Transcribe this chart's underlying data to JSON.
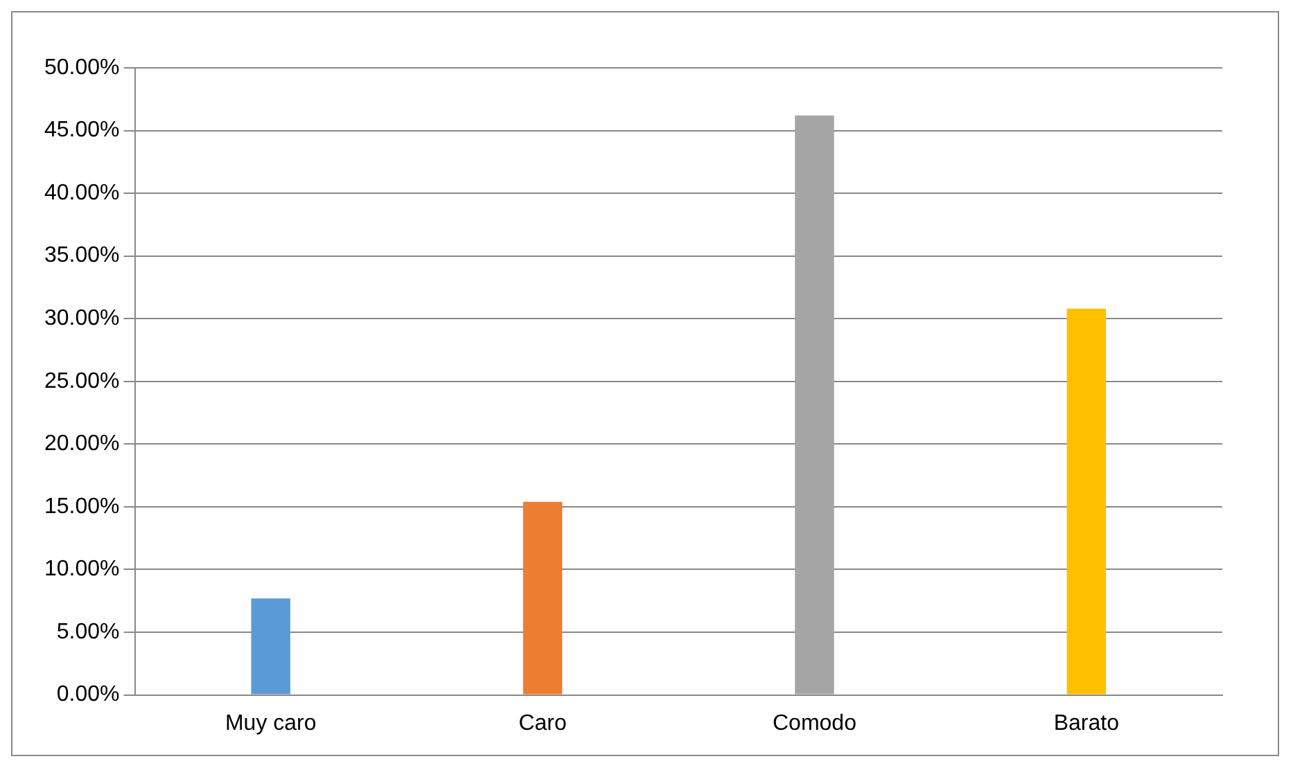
{
  "chart_data": {
    "type": "bar",
    "categories": [
      "Muy caro",
      "Caro",
      "Comodo",
      "Barato"
    ],
    "values": [
      7.7,
      15.4,
      46.2,
      30.8
    ],
    "colors": [
      "#5b9bd5",
      "#ed7d31",
      "#a5a5a5",
      "#ffc000"
    ],
    "ylim": [
      0,
      50
    ],
    "yticks": [
      {
        "value": 0,
        "label": "0.00%"
      },
      {
        "value": 5,
        "label": "5.00%"
      },
      {
        "value": 10,
        "label": "10.00%"
      },
      {
        "value": 15,
        "label": "15.00%"
      },
      {
        "value": 20,
        "label": "20.00%"
      },
      {
        "value": 25,
        "label": "25.00%"
      },
      {
        "value": 30,
        "label": "30.00%"
      },
      {
        "value": 35,
        "label": "35.00%"
      },
      {
        "value": 40,
        "label": "40.00%"
      },
      {
        "value": 45,
        "label": "45.00%"
      },
      {
        "value": 50,
        "label": "50.00%"
      }
    ],
    "grid": "y",
    "legend": false
  }
}
